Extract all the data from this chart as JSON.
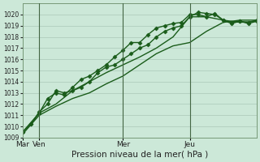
{
  "bg_color": "#cce8d8",
  "grid_color": "#aac8b8",
  "line_color": "#1a5c1a",
  "title": "Pression niveau de la mer( hPa )",
  "ylim": [
    1009,
    1021
  ],
  "yticks": [
    1009,
    1010,
    1011,
    1012,
    1013,
    1014,
    1015,
    1016,
    1017,
    1018,
    1019,
    1020
  ],
  "xtick_labels": [
    "Mar",
    "Ven",
    "Mer",
    "Jeu"
  ],
  "xtick_positions": [
    0,
    12,
    72,
    120
  ],
  "total_hours": 168,
  "series": [
    {
      "x": [
        0,
        12,
        24,
        36,
        48,
        60,
        72,
        84,
        96,
        108,
        120,
        132,
        144,
        156,
        168
      ],
      "y": [
        1009.3,
        1011.0,
        1011.8,
        1012.5,
        1013.0,
        1013.8,
        1014.5,
        1015.5,
        1016.5,
        1017.2,
        1017.5,
        1018.5,
        1019.3,
        1019.5,
        1019.5
      ],
      "marker": null,
      "markersize": 0,
      "linewidth": 1.0
    },
    {
      "x": [
        0,
        12,
        24,
        36,
        48,
        60,
        72,
        84,
        96,
        108,
        120,
        132,
        144,
        156,
        168
      ],
      "y": [
        1009.5,
        1011.2,
        1012.0,
        1013.2,
        1014.0,
        1014.8,
        1015.5,
        1016.2,
        1017.0,
        1018.0,
        1019.8,
        1019.8,
        1019.5,
        1019.3,
        1019.4
      ],
      "marker": null,
      "markersize": 0,
      "linewidth": 1.0
    },
    {
      "x": [
        0,
        6,
        12,
        18,
        24,
        30,
        36,
        42,
        48,
        54,
        60,
        66,
        72,
        78,
        84,
        90,
        96,
        102,
        108,
        114,
        120,
        126,
        132,
        138,
        144,
        150,
        156,
        162,
        168
      ],
      "y": [
        1009.5,
        1010.2,
        1011.3,
        1012.0,
        1013.2,
        1013.0,
        1013.2,
        1013.5,
        1014.0,
        1014.8,
        1015.3,
        1015.5,
        1016.0,
        1016.5,
        1017.0,
        1017.3,
        1018.0,
        1018.5,
        1018.8,
        1019.0,
        1019.8,
        1020.2,
        1020.1,
        1020.0,
        1019.5,
        1019.3,
        1019.4,
        1019.2,
        1019.4
      ],
      "marker": "D",
      "markersize": 2.5,
      "linewidth": 1.0
    },
    {
      "x": [
        0,
        6,
        12,
        18,
        24,
        30,
        36,
        42,
        48,
        54,
        60,
        66,
        72,
        78,
        84,
        90,
        96,
        102,
        108,
        114,
        120,
        126,
        132,
        138,
        144,
        150,
        156,
        162,
        168
      ],
      "y": [
        1009.5,
        1010.2,
        1011.2,
        1012.5,
        1013.0,
        1012.8,
        1013.5,
        1014.2,
        1014.5,
        1015.0,
        1015.5,
        1016.2,
        1016.8,
        1017.5,
        1017.5,
        1018.2,
        1018.8,
        1019.0,
        1019.2,
        1019.3,
        1020.0,
        1020.0,
        1019.8,
        1020.1,
        1019.5,
        1019.2,
        1019.4,
        1019.3,
        1019.5
      ],
      "marker": "D",
      "markersize": 2.5,
      "linewidth": 1.0
    }
  ],
  "vline_positions": [
    12,
    72,
    120
  ],
  "vline_color": "#446644",
  "vline_lw": 0.8
}
